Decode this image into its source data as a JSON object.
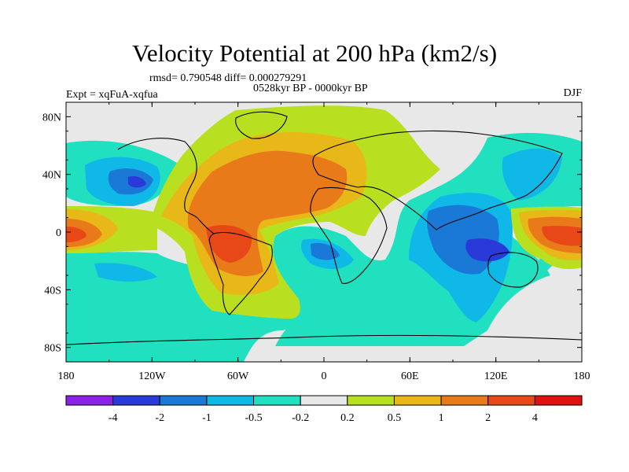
{
  "chart_data": {
    "type": "heatmap",
    "title": "Velocity Potential at 200 hPa (km2/s)",
    "stats_text": "rmsd= 0.790548 diff= 0.000279291",
    "period_text": "0528kyr BP - 0000kyr BP",
    "left_label": "Expt = xqFuA-xqfua",
    "right_label": "DJF",
    "x_ticks": [
      "180",
      "120W",
      "60W",
      "0",
      "60E",
      "120E",
      "180"
    ],
    "x_tick_values": [
      -180,
      -120,
      -60,
      0,
      60,
      120,
      180
    ],
    "y_ticks": [
      "80N",
      "40N",
      "0",
      "40S",
      "80S"
    ],
    "y_tick_values": [
      80,
      40,
      0,
      -40,
      -80
    ],
    "xlim": [
      -180,
      180
    ],
    "ylim": [
      -90,
      90
    ],
    "colorbar": {
      "labels": [
        "-4",
        "-2",
        "-1",
        "-0.5",
        "-0.2",
        "0.2",
        "0.5",
        "1",
        "2",
        "4"
      ],
      "colors": [
        "#8a22e8",
        "#2a3ad8",
        "#1a78d6",
        "#10b8e8",
        "#20e0c0",
        "#e8e8e8",
        "#b8e020",
        "#e8b818",
        "#e87a1a",
        "#e84818",
        "#e01010"
      ]
    },
    "fill_levels": [
      {
        "level": "0.2 to 0.5",
        "color": "#b8e020"
      },
      {
        "level": "0.5 to 1",
        "color": "#e8b818"
      },
      {
        "level": "1 to 2",
        "color": "#e87a1a"
      },
      {
        "level": "2 to 4",
        "color": "#e84818"
      },
      {
        "level": "-0.5 to -0.2",
        "color": "#20e0c0"
      },
      {
        "level": "-1 to -0.5",
        "color": "#10b8e8"
      },
      {
        "level": "-2 to -1",
        "color": "#1a78d6"
      },
      {
        "level": "-4 to -2",
        "color": "#2a3ad8"
      }
    ]
  }
}
